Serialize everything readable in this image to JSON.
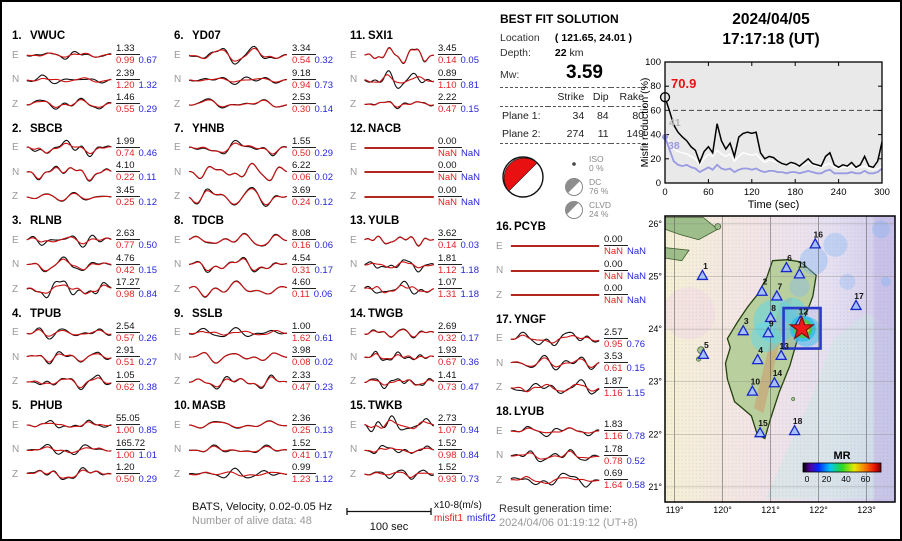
{
  "event": {
    "date": "2024/04/05",
    "time": "17:17:18  (UT)"
  },
  "solution": {
    "title": "BEST FIT SOLUTION",
    "location_label": "Location",
    "location_value": "( 121.65,  24.01 )",
    "depth_label": "Depth:",
    "depth_value": "22",
    "depth_unit": "km",
    "mw_label": "Mw:",
    "mw_value": "3.59",
    "table": {
      "headers": [
        "Strike",
        "Dip",
        "Rake"
      ],
      "rows": [
        {
          "label": "Plane 1:",
          "values": [
            "34",
            "84",
            "80"
          ]
        },
        {
          "label": "Plane 2:",
          "values": [
            "274",
            "11",
            "149"
          ]
        }
      ]
    },
    "decomposition": [
      {
        "label": "ISO",
        "pct": "0  %"
      },
      {
        "label": "DC",
        "pct": "76 %"
      },
      {
        "label": "CLVD",
        "pct": "24 %"
      }
    ]
  },
  "stations": [
    {
      "num": "1.",
      "name": "VWUC",
      "channels": [
        {
          "ch": "E",
          "amp": "1.33",
          "m1": "0.99",
          "m2": "0.67"
        },
        {
          "ch": "N",
          "amp": "2.39",
          "m1": "1.20",
          "m2": "1.32"
        },
        {
          "ch": "Z",
          "amp": "1.46",
          "m1": "0.55",
          "m2": "0.29"
        }
      ]
    },
    {
      "num": "2.",
      "name": "SBCB",
      "channels": [
        {
          "ch": "E",
          "amp": "1.99",
          "m1": "0.74",
          "m2": "0.46"
        },
        {
          "ch": "N",
          "amp": "4.10",
          "m1": "0.22",
          "m2": "0.11"
        },
        {
          "ch": "Z",
          "amp": "3.45",
          "m1": "0.25",
          "m2": "0.12"
        }
      ]
    },
    {
      "num": "3.",
      "name": "RLNB",
      "channels": [
        {
          "ch": "E",
          "amp": "2.63",
          "m1": "0.77",
          "m2": "0.50"
        },
        {
          "ch": "N",
          "amp": "4.76",
          "m1": "0.42",
          "m2": "0.15"
        },
        {
          "ch": "Z",
          "amp": "17.27",
          "m1": "0.98",
          "m2": "0.84"
        }
      ]
    },
    {
      "num": "4.",
      "name": "TPUB",
      "channels": [
        {
          "ch": "E",
          "amp": "2.54",
          "m1": "0.57",
          "m2": "0.26"
        },
        {
          "ch": "N",
          "amp": "2.91",
          "m1": "0.51",
          "m2": "0.27"
        },
        {
          "ch": "Z",
          "amp": "1.05",
          "m1": "0.62",
          "m2": "0.38"
        }
      ]
    },
    {
      "num": "5.",
      "name": "PHUB",
      "channels": [
        {
          "ch": "E",
          "amp": "55.05",
          "m1": "1.00",
          "m2": "0.85"
        },
        {
          "ch": "N",
          "amp": "165.72",
          "m1": "1.00",
          "m2": "1.01"
        },
        {
          "ch": "Z",
          "amp": "1.20",
          "m1": "0.50",
          "m2": "0.29"
        }
      ]
    },
    {
      "num": "6.",
      "name": "YD07",
      "channels": [
        {
          "ch": "E",
          "amp": "3.34",
          "m1": "0.54",
          "m2": "0.32"
        },
        {
          "ch": "N",
          "amp": "9.18",
          "m1": "0.94",
          "m2": "0.73"
        },
        {
          "ch": "Z",
          "amp": "2.53",
          "m1": "0.30",
          "m2": "0.14"
        }
      ]
    },
    {
      "num": "7.",
      "name": "YHNB",
      "channels": [
        {
          "ch": "E",
          "amp": "1.55",
          "m1": "0.50",
          "m2": "0.29"
        },
        {
          "ch": "N",
          "amp": "6.22",
          "m1": "0.06",
          "m2": "0.02"
        },
        {
          "ch": "Z",
          "amp": "3.69",
          "m1": "0.24",
          "m2": "0.12"
        }
      ]
    },
    {
      "num": "8.",
      "name": "TDCB",
      "channels": [
        {
          "ch": "E",
          "amp": "8.08",
          "m1": "0.16",
          "m2": "0.06"
        },
        {
          "ch": "N",
          "amp": "4.54",
          "m1": "0.31",
          "m2": "0.17"
        },
        {
          "ch": "Z",
          "amp": "4.60",
          "m1": "0.11",
          "m2": "0.06"
        }
      ]
    },
    {
      "num": "9.",
      "name": "SSLB",
      "channels": [
        {
          "ch": "E",
          "amp": "1.00",
          "m1": "1.62",
          "m2": "0.61"
        },
        {
          "ch": "N",
          "amp": "3.98",
          "m1": "0.08",
          "m2": "0.02"
        },
        {
          "ch": "Z",
          "amp": "2.33",
          "m1": "0.47",
          "m2": "0.23"
        }
      ]
    },
    {
      "num": "10.",
      "name": "MASB",
      "channels": [
        {
          "ch": "E",
          "amp": "2.36",
          "m1": "0.25",
          "m2": "0.13"
        },
        {
          "ch": "N",
          "amp": "1.52",
          "m1": "0.41",
          "m2": "0.17"
        },
        {
          "ch": "Z",
          "amp": "0.99",
          "m1": "1.23",
          "m2": "1.12"
        }
      ]
    },
    {
      "num": "11.",
      "name": "SXI1",
      "channels": [
        {
          "ch": "E",
          "amp": "3.45",
          "m1": "0.14",
          "m2": "0.05"
        },
        {
          "ch": "N",
          "amp": "0.89",
          "m1": "1.10",
          "m2": "0.81"
        },
        {
          "ch": "Z",
          "amp": "2.22",
          "m1": "0.47",
          "m2": "0.15"
        }
      ]
    },
    {
      "num": "12.",
      "name": "NACB",
      "channels": [
        {
          "ch": "E",
          "amp": "0.00",
          "m1": "NaN",
          "m2": "NaN"
        },
        {
          "ch": "N",
          "amp": "0.00",
          "m1": "NaN",
          "m2": "NaN"
        },
        {
          "ch": "Z",
          "amp": "0.00",
          "m1": "NaN",
          "m2": "NaN"
        }
      ]
    },
    {
      "num": "13.",
      "name": "YULB",
      "channels": [
        {
          "ch": "E",
          "amp": "3.62",
          "m1": "0.14",
          "m2": "0.03"
        },
        {
          "ch": "N",
          "amp": "1.81",
          "m1": "1.12",
          "m2": "1.18"
        },
        {
          "ch": "Z",
          "amp": "1.07",
          "m1": "1.31",
          "m2": "1.18"
        }
      ]
    },
    {
      "num": "14.",
      "name": "TWGB",
      "channels": [
        {
          "ch": "E",
          "amp": "2.69",
          "m1": "0.32",
          "m2": "0.17"
        },
        {
          "ch": "N",
          "amp": "1.93",
          "m1": "0.67",
          "m2": "0.36"
        },
        {
          "ch": "Z",
          "amp": "1.41",
          "m1": "0.73",
          "m2": "0.47"
        }
      ]
    },
    {
      "num": "15.",
      "name": "TWKB",
      "channels": [
        {
          "ch": "E",
          "amp": "2.73",
          "m1": "1.07",
          "m2": "0.94"
        },
        {
          "ch": "N",
          "amp": "1.52",
          "m1": "0.98",
          "m2": "0.84"
        },
        {
          "ch": "Z",
          "amp": "1.52",
          "m1": "0.93",
          "m2": "0.73"
        }
      ]
    },
    {
      "num": "16.",
      "name": "PCYB",
      "channels": [
        {
          "ch": "E",
          "amp": "0.00",
          "m1": "NaN",
          "m2": "NaN"
        },
        {
          "ch": "N",
          "amp": "0.00",
          "m1": "NaN",
          "m2": "NaN"
        },
        {
          "ch": "Z",
          "amp": "0.00",
          "m1": "NaN",
          "m2": "NaN"
        }
      ]
    },
    {
      "num": "17.",
      "name": "YNGF",
      "channels": [
        {
          "ch": "E",
          "amp": "2.57",
          "m1": "0.95",
          "m2": "0.76"
        },
        {
          "ch": "N",
          "amp": "3.53",
          "m1": "0.61",
          "m2": "0.15"
        },
        {
          "ch": "Z",
          "amp": "1.87",
          "m1": "1.16",
          "m2": "1.15"
        }
      ]
    },
    {
      "num": "18.",
      "name": "LYUB",
      "channels": [
        {
          "ch": "E",
          "amp": "1.83",
          "m1": "1.16",
          "m2": "0.78"
        },
        {
          "ch": "N",
          "amp": "1.78",
          "m1": "0.78",
          "m2": "0.52"
        },
        {
          "ch": "Z",
          "amp": "0.69",
          "m1": "1.64",
          "m2": "0.58"
        }
      ]
    }
  ],
  "columns": [
    [
      0,
      1,
      2,
      3,
      4
    ],
    [
      5,
      6,
      7,
      8,
      9
    ],
    [
      10,
      11,
      12,
      13,
      14
    ],
    [
      15,
      16,
      17
    ]
  ],
  "chart_data": {
    "type": "line",
    "title": "Misfit reduction vs time",
    "ylabel": "Misfit reduction (%)",
    "xlabel": "Time (sec)",
    "ylim": [
      0,
      100
    ],
    "xlim": [
      0,
      300
    ],
    "yticks": [
      "0",
      "20",
      "40",
      "60",
      "80",
      "100"
    ],
    "xticks": [
      "0",
      "60",
      "120",
      "180",
      "240",
      "300"
    ],
    "x_interval_sec": 6,
    "dashed_line_y": 60,
    "series": [
      {
        "name": "best-solution",
        "color": "#000000",
        "values": [
          70.9,
          60,
          48,
          42,
          38,
          35,
          30,
          27,
          17,
          26,
          30,
          25,
          49,
          35,
          28,
          33,
          22,
          38,
          41,
          42,
          41,
          42,
          25,
          20,
          22,
          21,
          18,
          16,
          15,
          17,
          16,
          14,
          17,
          20,
          16,
          15,
          14,
          22,
          25,
          15,
          13,
          15,
          14,
          17,
          13,
          15,
          22,
          14,
          13,
          18,
          34
        ]
      },
      {
        "name": "second-solution",
        "color": "#ffffff",
        "values": [
          41,
          34,
          28,
          26,
          25,
          24,
          22,
          20,
          15,
          20,
          24,
          22,
          27,
          24,
          22,
          24,
          18,
          22,
          25,
          24,
          23,
          24,
          20,
          17,
          19,
          18,
          17,
          16,
          15,
          16,
          15,
          14,
          15,
          17,
          15,
          14,
          13,
          15,
          16,
          13,
          12,
          13,
          13,
          14,
          12,
          13,
          14,
          12,
          11,
          12,
          13
        ]
      },
      {
        "name": "third-solution",
        "color": "#9a9ae2",
        "values": [
          38,
          28,
          18,
          15,
          14,
          15,
          13,
          12,
          9,
          11,
          13,
          11,
          15,
          12,
          11,
          12,
          9,
          11,
          12,
          12,
          11,
          12,
          10,
          9,
          10,
          10,
          9,
          9,
          8,
          9,
          9,
          8,
          9,
          10,
          9,
          8,
          8,
          10,
          11,
          8,
          8,
          8,
          8,
          9,
          8,
          8,
          10,
          8,
          8,
          9,
          12
        ]
      }
    ],
    "annotations": [
      {
        "text": "70.9",
        "color": "#e81010"
      },
      {
        "text": "41",
        "color": "#b2b2b2"
      },
      {
        "text": "38",
        "color": "#9a9ae2"
      }
    ]
  },
  "map": {
    "lon_ticks": [
      "119°",
      "120°",
      "121°",
      "122°",
      "123°"
    ],
    "lon_vals": [
      119,
      120,
      121,
      122,
      123
    ],
    "lat_ticks": [
      "26°",
      "25°",
      "24°",
      "23°",
      "22°",
      "21°"
    ],
    "lat_vals": [
      26,
      25,
      24,
      23,
      22,
      21
    ],
    "stations": [
      {
        "n": "1",
        "lon": 119.58,
        "lat": 25.02
      },
      {
        "n": "2",
        "lon": 120.82,
        "lat": 24.72
      },
      {
        "n": "3",
        "lon": 120.43,
        "lat": 23.97
      },
      {
        "n": "4",
        "lon": 120.73,
        "lat": 23.42
      },
      {
        "n": "5",
        "lon": 119.6,
        "lat": 23.52
      },
      {
        "n": "6",
        "lon": 121.33,
        "lat": 25.17
      },
      {
        "n": "7",
        "lon": 121.13,
        "lat": 24.63
      },
      {
        "n": "8",
        "lon": 121.0,
        "lat": 24.22
      },
      {
        "n": "9",
        "lon": 120.95,
        "lat": 23.93
      },
      {
        "n": "10",
        "lon": 120.62,
        "lat": 22.82
      },
      {
        "n": "11",
        "lon": 121.6,
        "lat": 25.05
      },
      {
        "n": "12",
        "lon": 121.62,
        "lat": 24.15
      },
      {
        "n": "13",
        "lon": 121.22,
        "lat": 23.5
      },
      {
        "n": "14",
        "lon": 121.08,
        "lat": 22.98
      },
      {
        "n": "15",
        "lon": 120.78,
        "lat": 22.03
      },
      {
        "n": "16",
        "lon": 121.93,
        "lat": 25.62
      },
      {
        "n": "17",
        "lon": 122.78,
        "lat": 24.45
      },
      {
        "n": "18",
        "lon": 121.5,
        "lat": 22.07
      }
    ],
    "epicenter": {
      "lon": 121.65,
      "lat": 24.01
    },
    "colorbar": {
      "label": "MR",
      "ticks": [
        "0",
        "20",
        "40",
        "60"
      ]
    }
  },
  "footer": {
    "line1": "BATS, Velocity, 0.02-0.05 Hz",
    "line2": "Number of alive data: 48",
    "scale_label": "100 sec",
    "units": "x10-8(m/s)",
    "misfit1": "misfit1",
    "misfit2": "misfit2",
    "result_label": "Result generation time:",
    "result_value": "2024/04/06 01:19:12 (UT+8)"
  }
}
